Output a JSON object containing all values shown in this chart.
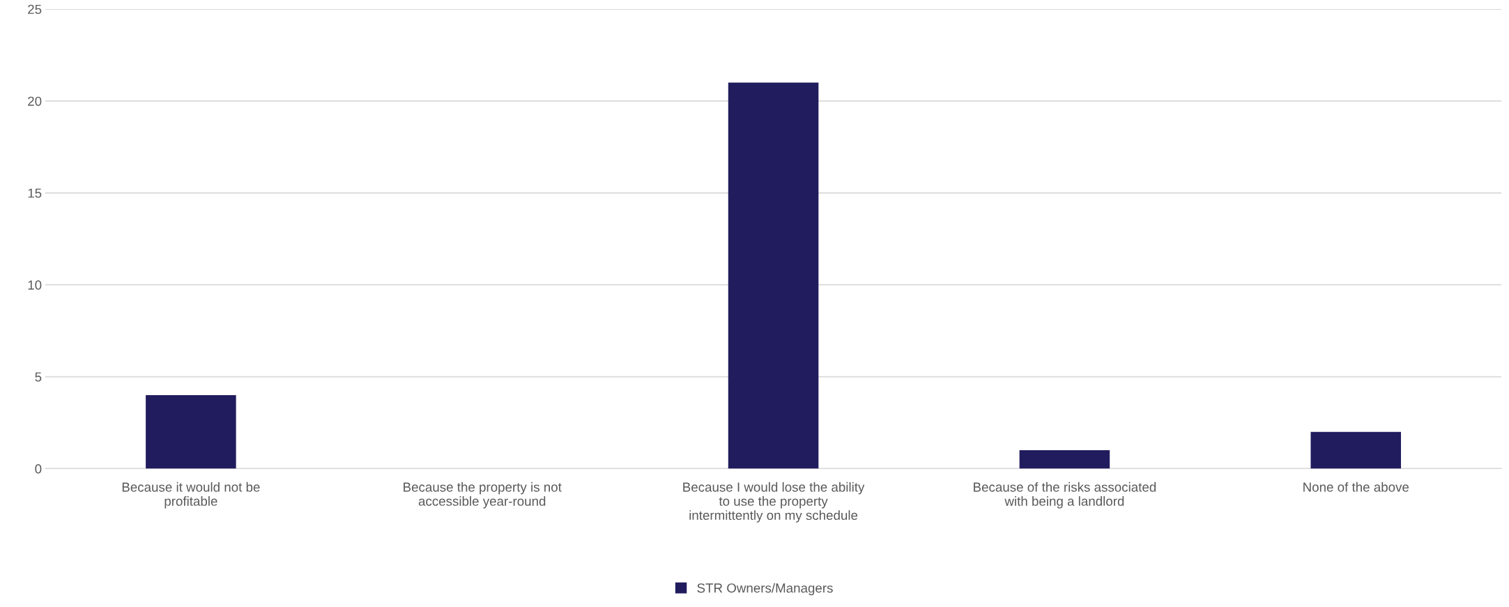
{
  "chart_data": {
    "type": "bar",
    "categories": [
      "Because it would not be profitable",
      "Because the property is not accessible year-round",
      "Because I would lose the ability to use the property intermittently on my schedule",
      "Because of the risks associated with being a landlord",
      "None of the above"
    ],
    "series": [
      {
        "name": "STR Owners/Managers",
        "color": "#211c5e",
        "values": [
          4,
          0,
          21,
          1,
          2
        ]
      }
    ],
    "ylim": [
      0,
      25
    ],
    "yticks": [
      0,
      5,
      10,
      15,
      20,
      25
    ],
    "grid": "y",
    "legend": "bottom"
  }
}
